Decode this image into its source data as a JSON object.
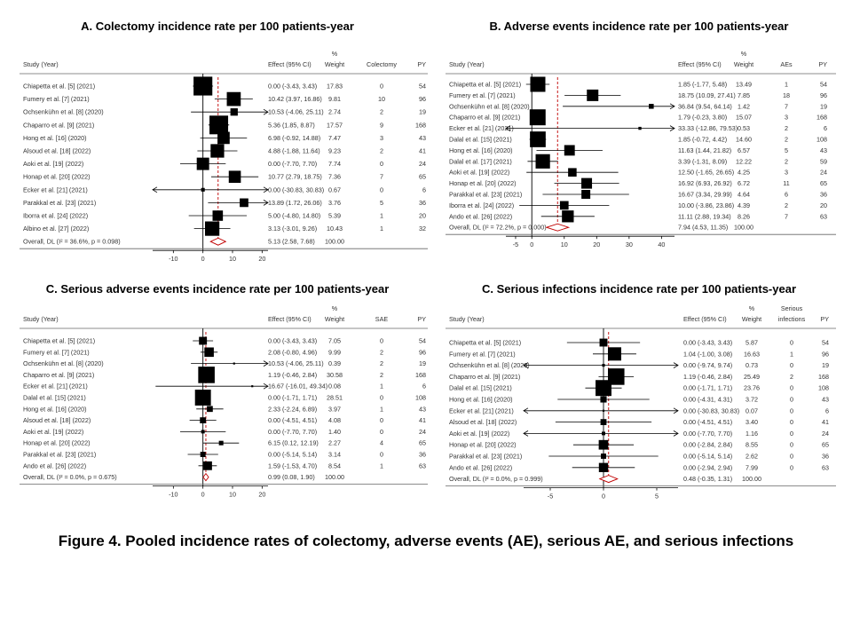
{
  "caption": "Figure 4. Pooled incidence rates of colectomy, adverse events (AE), serious AE, and serious infections",
  "chart_data": [
    {
      "type": "forest",
      "title": "A. Colectomy incidence rate per 100 patients-year",
      "headers": {
        "study": "Study (Year)",
        "effect": "Effect (95% CI)",
        "weight_top": "%",
        "weight": "Weight",
        "events_top": "",
        "events": "Colectomy",
        "py": "PY"
      },
      "xticks": [
        -10,
        0,
        10,
        20
      ],
      "xlim": [
        -17,
        22
      ],
      "refline": 5.13,
      "studies": [
        {
          "label": "Chiapetta et al. [5] (2021)",
          "est": 0.0,
          "lo": -3.43,
          "hi": 3.43,
          "ci": "0.00 (-3.43, 3.43)",
          "weight": "17.83",
          "events": "0",
          "py": "54",
          "w": 17.83
        },
        {
          "label": "Fumery et al. [7] (2021)",
          "est": 10.42,
          "lo": 3.97,
          "hi": 16.86,
          "ci": "10.42 (3.97, 16.86)",
          "weight": "9.81",
          "events": "10",
          "py": "96",
          "w": 9.81
        },
        {
          "label": "Ochsenkühn et al. [8] (2020)",
          "est": 10.53,
          "lo": -4.06,
          "hi": 25.11,
          "ci": "10.53 (-4.06, 25.11)",
          "weight": "2.74",
          "events": "2",
          "py": "19",
          "w": 2.74
        },
        {
          "label": "Chaparro et al. [9] (2021)",
          "est": 5.36,
          "lo": 1.85,
          "hi": 8.87,
          "ci": "5.36 (1.85, 8.87)",
          "weight": "17.57",
          "events": "9",
          "py": "168",
          "w": 17.57
        },
        {
          "label": "Hong et al. [16] (2020)",
          "est": 6.98,
          "lo": -0.92,
          "hi": 14.88,
          "ci": "6.98 (-0.92, 14.88)",
          "weight": "7.47",
          "events": "3",
          "py": "43",
          "w": 7.47
        },
        {
          "label": "Alsoud et al. [18] (2022)",
          "est": 4.88,
          "lo": -1.88,
          "hi": 11.64,
          "ci": "4.88 (-1.88, 11.64)",
          "weight": "9.23",
          "events": "2",
          "py": "41",
          "w": 9.23
        },
        {
          "label": "Aoki et al. [19] (2022)",
          "est": 0.0,
          "lo": -7.7,
          "hi": 7.7,
          "ci": "0.00 (-7.70, 7.70)",
          "weight": "7.74",
          "events": "0",
          "py": "24",
          "w": 7.74
        },
        {
          "label": "Honap et al. [20] (2022)",
          "est": 10.77,
          "lo": 2.79,
          "hi": 18.75,
          "ci": "10.77 (2.79, 18.75)",
          "weight": "7.36",
          "events": "7",
          "py": "65",
          "w": 7.36
        },
        {
          "label": "Ecker et al. [21] (2021)",
          "est": 0.0,
          "lo": -30.83,
          "hi": 30.83,
          "ci": "0.00 (-30.83, 30.83)",
          "weight": "0.67",
          "events": "0",
          "py": "6",
          "w": 0.67
        },
        {
          "label": "Parakkal et al. [23] (2021)",
          "est": 13.89,
          "lo": 1.72,
          "hi": 26.06,
          "ci": "13.89 (1.72, 26.06)",
          "weight": "3.76",
          "events": "5",
          "py": "36",
          "w": 3.76
        },
        {
          "label": "Iborra et al. [24] (2022)",
          "est": 5.0,
          "lo": -4.8,
          "hi": 14.8,
          "ci": "5.00 (-4.80, 14.80)",
          "weight": "5.39",
          "events": "1",
          "py": "20",
          "w": 5.39
        },
        {
          "label": "Albino et al. [27] (2022)",
          "est": 3.13,
          "lo": -3.01,
          "hi": 9.26,
          "ci": "3.13 (-3.01, 9.26)",
          "weight": "10.43",
          "events": "1",
          "py": "32",
          "w": 10.43
        }
      ],
      "overall": {
        "label": "Overall, DL (I² = 36.6%, p = 0.098)",
        "est": 5.13,
        "lo": 2.58,
        "hi": 7.68,
        "ci": "5.13 (2.58, 7.68)",
        "weight": "100.00"
      }
    },
    {
      "type": "forest",
      "title": "B. Adverse events incidence rate per 100 patients-year",
      "headers": {
        "study": "Study (Year)",
        "effect": "Effect (95% CI)",
        "weight_top": "%",
        "weight": "Weight",
        "events_top": "",
        "events": "AEs",
        "py": "PY"
      },
      "xticks": [
        -5,
        0,
        10,
        20,
        30,
        40
      ],
      "xlim": [
        -8,
        44
      ],
      "refline": 7.94,
      "studies": [
        {
          "label": "Chiapetta et al. [5] (2021)",
          "est": 1.85,
          "lo": -1.77,
          "hi": 5.48,
          "ci": "1.85 (-1.77, 5.48)",
          "weight": "13.49",
          "events": "1",
          "py": "54",
          "w": 13.49
        },
        {
          "label": "Fumery et al. [7] (2021)",
          "est": 18.75,
          "lo": 10.09,
          "hi": 27.41,
          "ci": "18.75 (10.09, 27.41)",
          "weight": "7.85",
          "events": "18",
          "py": "96",
          "w": 7.85
        },
        {
          "label": "Ochsenkühn et al. [8] (2020)",
          "est": 36.84,
          "lo": 9.54,
          "hi": 64.14,
          "ci": "36.84 (9.54, 64.14)",
          "weight": "1.42",
          "events": "7",
          "py": "19",
          "w": 1.42
        },
        {
          "label": "Chaparro et al. [9] (2021)",
          "est": 1.79,
          "lo": -0.23,
          "hi": 3.8,
          "ci": "1.79 (-0.23, 3.80)",
          "weight": "15.07",
          "events": "3",
          "py": "168",
          "w": 15.07
        },
        {
          "label": "Ecker et al. [21] (2021)",
          "est": 33.33,
          "lo": -12.86,
          "hi": 79.53,
          "ci": "33.33 (-12.86, 79.53)",
          "weight": "0.53",
          "events": "2",
          "py": "6",
          "w": 0.53
        },
        {
          "label": "Dalal et al. [15] (2021)",
          "est": 1.85,
          "lo": -0.72,
          "hi": 4.42,
          "ci": "1.85 (-0.72, 4.42)",
          "weight": "14.60",
          "events": "2",
          "py": "108",
          "w": 14.6
        },
        {
          "label": "Hong et al. [16] (2020)",
          "est": 11.63,
          "lo": 1.44,
          "hi": 21.82,
          "ci": "11.63 (1.44, 21.82)",
          "weight": "6.57",
          "events": "5",
          "py": "43",
          "w": 6.57
        },
        {
          "label": "Dalal et al. [17] (2021)",
          "est": 3.39,
          "lo": -1.31,
          "hi": 8.09,
          "ci": "3.39 (-1.31, 8.09)",
          "weight": "12.22",
          "events": "2",
          "py": "59",
          "w": 12.22
        },
        {
          "label": "Aoki et al. [19] (2022)",
          "est": 12.5,
          "lo": -1.65,
          "hi": 26.65,
          "ci": "12.50 (-1.65, 26.65)",
          "weight": "4.25",
          "events": "3",
          "py": "24",
          "w": 4.25
        },
        {
          "label": "Honap et al. [20] (2022)",
          "est": 16.92,
          "lo": 6.93,
          "hi": 26.92,
          "ci": "16.92 (6.93, 26.92)",
          "weight": "6.72",
          "events": "11",
          "py": "65",
          "w": 6.72
        },
        {
          "label": "Parakkal et al. [23] (2021)",
          "est": 16.67,
          "lo": 3.34,
          "hi": 29.99,
          "ci": "16.67 (3.34, 29.99)",
          "weight": "4.64",
          "events": "6",
          "py": "36",
          "w": 4.64
        },
        {
          "label": "Iborra et al. [24] (2022)",
          "est": 10.0,
          "lo": -3.86,
          "hi": 23.86,
          "ci": "10.00 (-3.86, 23.86)",
          "weight": "4.39",
          "events": "2",
          "py": "20",
          "w": 4.39
        },
        {
          "label": "Ando et al. [26] (2022)",
          "est": 11.11,
          "lo": 2.88,
          "hi": 19.34,
          "ci": "11.11 (2.88, 19.34)",
          "weight": "8.26",
          "events": "7",
          "py": "63",
          "w": 8.26
        }
      ],
      "overall": {
        "label": "Overall, DL (I² = 72.2%, p = 0.000)",
        "est": 7.94,
        "lo": 4.53,
        "hi": 11.35,
        "ci": "7.94 (4.53, 11.35)",
        "weight": "100.00"
      }
    },
    {
      "type": "forest",
      "title": "C. Serious adverse events incidence rate per 100 patients-year",
      "headers": {
        "study": "Study (Year)",
        "effect": "Effect (95% CI)",
        "weight_top": "%",
        "weight": "Weight",
        "events_top": "",
        "events": "SAE",
        "py": "PY"
      },
      "xticks": [
        -10,
        0,
        10,
        20
      ],
      "xlim": [
        -17,
        22
      ],
      "refline": 0.99,
      "studies": [
        {
          "label": "Chiapetta et al. [5] (2021)",
          "est": 0.0,
          "lo": -3.43,
          "hi": 3.43,
          "ci": "0.00 (-3.43, 3.43)",
          "weight": "7.05",
          "events": "0",
          "py": "54",
          "w": 7.05
        },
        {
          "label": "Fumery et al. [7] (2021)",
          "est": 2.08,
          "lo": -0.8,
          "hi": 4.96,
          "ci": "2.08 (-0.80, 4.96)",
          "weight": "9.99",
          "events": "2",
          "py": "96",
          "w": 9.99
        },
        {
          "label": "Ochsenkühn et al. [8] (2020)",
          "est": 10.53,
          "lo": -4.06,
          "hi": 25.11,
          "ci": "10.53 (-4.06, 25.11)",
          "weight": "0.39",
          "events": "2",
          "py": "19",
          "w": 0.39
        },
        {
          "label": "Chaparro et al. [9] (2021)",
          "est": 1.19,
          "lo": -0.46,
          "hi": 2.84,
          "ci": "1.19 (-0.46, 2.84)",
          "weight": "30.58",
          "events": "2",
          "py": "168",
          "w": 30.58
        },
        {
          "label": "Ecker et al. [21] (2021)",
          "est": 16.67,
          "lo": -16.01,
          "hi": 49.34,
          "ci": "16.67 (-16.01, 49.34)",
          "weight": "0.08",
          "events": "1",
          "py": "6",
          "w": 0.08
        },
        {
          "label": "Dalal et al. [15] (2021)",
          "est": 0.0,
          "lo": -1.71,
          "hi": 1.71,
          "ci": "0.00 (-1.71, 1.71)",
          "weight": "28.51",
          "events": "0",
          "py": "108",
          "w": 28.51
        },
        {
          "label": "Hong et al. [16] (2020)",
          "est": 2.33,
          "lo": -2.24,
          "hi": 6.89,
          "ci": "2.33 (-2.24, 6.89)",
          "weight": "3.97",
          "events": "1",
          "py": "43",
          "w": 3.97
        },
        {
          "label": "Alsoud et al. [18] (2022)",
          "est": 0.0,
          "lo": -4.51,
          "hi": 4.51,
          "ci": "0.00 (-4.51, 4.51)",
          "weight": "4.08",
          "events": "0",
          "py": "41",
          "w": 4.08
        },
        {
          "label": "Aoki et al. [19] (2022)",
          "est": 0.0,
          "lo": -7.7,
          "hi": 7.7,
          "ci": "0.00 (-7.70, 7.70)",
          "weight": "1.40",
          "events": "0",
          "py": "24",
          "w": 1.4
        },
        {
          "label": "Honap et al. [20] (2022)",
          "est": 6.15,
          "lo": 0.12,
          "hi": 12.19,
          "ci": "6.15 (0.12, 12.19)",
          "weight": "2.27",
          "events": "4",
          "py": "65",
          "w": 2.27
        },
        {
          "label": "Parakkal et al. [23] (2021)",
          "est": 0.0,
          "lo": -5.14,
          "hi": 5.14,
          "ci": "0.00 (-5.14, 5.14)",
          "weight": "3.14",
          "events": "0",
          "py": "36",
          "w": 3.14
        },
        {
          "label": "Ando et al. [26] (2022)",
          "est": 1.59,
          "lo": -1.53,
          "hi": 4.7,
          "ci": "1.59 (-1.53, 4.70)",
          "weight": "8.54",
          "events": "1",
          "py": "63",
          "w": 8.54
        }
      ],
      "overall": {
        "label": "Overall, DL (I² = 0.0%, p = 0.675)",
        "est": 0.99,
        "lo": 0.08,
        "hi": 1.9,
        "ci": "0.99 (0.08, 1.90)",
        "weight": "100.00"
      }
    },
    {
      "type": "forest",
      "title": "C. Serious infections incidence rate per 100 patients-year",
      "headers": {
        "study": "Study (Year)",
        "effect": "Effect (95% CI)",
        "weight_top": "%",
        "weight": "Weight",
        "events_top": "Serious",
        "events": "infections",
        "py": "PY"
      },
      "xticks": [
        -5,
        0,
        5
      ],
      "xlim": [
        -7.5,
        7
      ],
      "refline": 0.48,
      "studies": [
        {
          "label": "Chiapetta et al. [5] (2021)",
          "est": 0.0,
          "lo": -3.43,
          "hi": 3.43,
          "ci": "0.00 (-3.43, 3.43)",
          "weight": "5.87",
          "events": "0",
          "py": "54",
          "w": 5.87
        },
        {
          "label": "Fumery et al. [7] (2021)",
          "est": 1.04,
          "lo": -1.0,
          "hi": 3.08,
          "ci": "1.04 (-1.00, 3.08)",
          "weight": "16.63",
          "events": "1",
          "py": "96",
          "w": 16.63
        },
        {
          "label": "Ochsenkühn et al. [8] (2020)",
          "est": 0.0,
          "lo": -9.74,
          "hi": 9.74,
          "ci": "0.00 (-9.74, 9.74)",
          "weight": "0.73",
          "events": "0",
          "py": "19",
          "w": 0.73
        },
        {
          "label": "Chaparro et al. [9] (2021)",
          "est": 1.19,
          "lo": -0.46,
          "hi": 2.84,
          "ci": "1.19 (-0.46, 2.84)",
          "weight": "25.49",
          "events": "2",
          "py": "168",
          "w": 25.49
        },
        {
          "label": "Dalal et al. [15] (2021)",
          "est": 0.0,
          "lo": -1.71,
          "hi": 1.71,
          "ci": "0.00 (-1.71, 1.71)",
          "weight": "23.76",
          "events": "0",
          "py": "108",
          "w": 23.76
        },
        {
          "label": "Hong et al. [16] (2020)",
          "est": 0.0,
          "lo": -4.31,
          "hi": 4.31,
          "ci": "0.00 (-4.31, 4.31)",
          "weight": "3.72",
          "events": "0",
          "py": "43",
          "w": 3.72
        },
        {
          "label": "Ecker et al. [21] (2021)",
          "est": 0.0,
          "lo": -30.83,
          "hi": 30.83,
          "ci": "0.00 (-30.83, 30.83)",
          "weight": "0.07",
          "events": "0",
          "py": "6",
          "w": 0.07
        },
        {
          "label": "Alsoud et al. [18] (2022)",
          "est": 0.0,
          "lo": -4.51,
          "hi": 4.51,
          "ci": "0.00 (-4.51, 4.51)",
          "weight": "3.40",
          "events": "0",
          "py": "41",
          "w": 3.4
        },
        {
          "label": "Aoki et al. [19] (2022)",
          "est": 0.0,
          "lo": -7.7,
          "hi": 7.7,
          "ci": "0.00 (-7.70, 7.70)",
          "weight": "1.16",
          "events": "0",
          "py": "24",
          "w": 1.16
        },
        {
          "label": "Honap et al. [20] (2022)",
          "est": 0.0,
          "lo": -2.84,
          "hi": 2.84,
          "ci": "0.00 (-2.84, 2.84)",
          "weight": "8.55",
          "events": "0",
          "py": "65",
          "w": 8.55
        },
        {
          "label": "Parakkal et al. [23] (2021)",
          "est": 0.0,
          "lo": -5.14,
          "hi": 5.14,
          "ci": "0.00 (-5.14, 5.14)",
          "weight": "2.62",
          "events": "0",
          "py": "36",
          "w": 2.62
        },
        {
          "label": "Ando et al. [26] (2022)",
          "est": 0.0,
          "lo": -2.94,
          "hi": 2.94,
          "ci": "0.00 (-2.94, 2.94)",
          "weight": "7.99",
          "events": "0",
          "py": "63",
          "w": 7.99
        }
      ],
      "overall": {
        "label": "Overall, DL (I² = 0.0%, p = 0.999)",
        "est": 0.48,
        "lo": -0.35,
        "hi": 1.31,
        "ci": "0.48 (-0.35, 1.31)",
        "weight": "100.00"
      }
    }
  ]
}
